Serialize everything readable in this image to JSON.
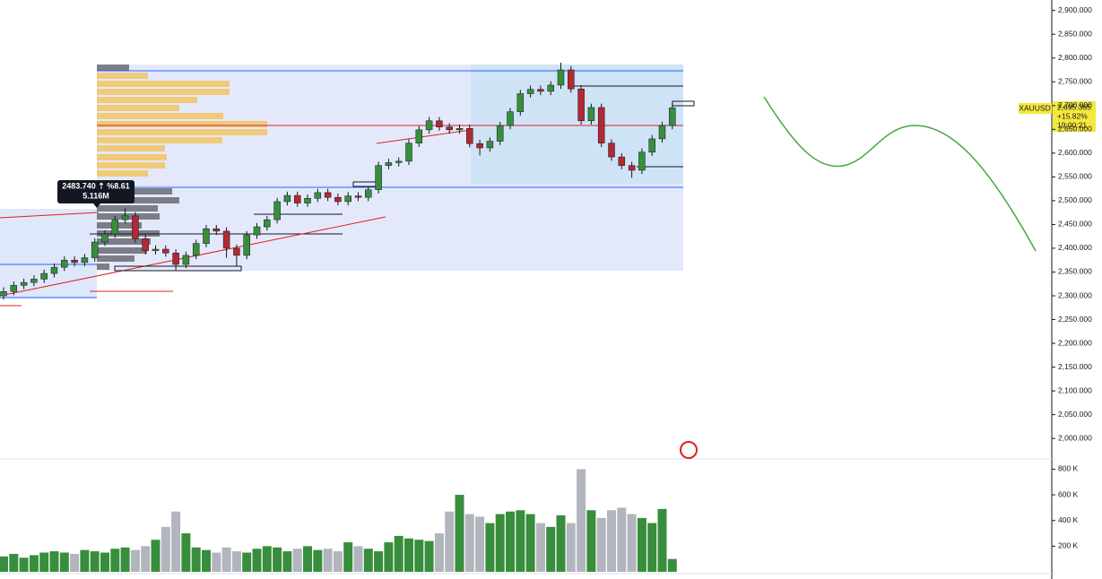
{
  "chart_data": [
    {
      "type": "candlestick",
      "series": [
        {
          "name": "XAUUSD",
          "up_color": "#388e3c",
          "down_color": "#b22833",
          "open": [
            2300,
            2309,
            2322,
            2328,
            2335,
            2347,
            2360,
            2375,
            2370,
            2380,
            2413,
            2430,
            2460,
            2468,
            2420,
            2395,
            2398,
            2390,
            2366,
            2385,
            2410,
            2441,
            2436,
            2400,
            2385,
            2428,
            2445,
            2460,
            2498,
            2511,
            2495,
            2505,
            2517,
            2507,
            2498,
            2510,
            2507,
            2523,
            2574,
            2580,
            2583,
            2621,
            2649,
            2668,
            2655,
            2649,
            2652,
            2620,
            2611,
            2625,
            2658,
            2687,
            2725,
            2734,
            2730,
            2743,
            2775,
            2735,
            2668,
            2696,
            2621,
            2592,
            2574,
            2564,
            2602,
            2630,
            2658
          ],
          "high": [
            2318,
            2330,
            2336,
            2343,
            2355,
            2368,
            2383,
            2383,
            2388,
            2421,
            2438,
            2468,
            2483.74,
            2476,
            2428,
            2406,
            2406,
            2398,
            2393,
            2418,
            2449,
            2449,
            2444,
            2408,
            2436,
            2453,
            2468,
            2506,
            2519,
            2519,
            2513,
            2525,
            2525,
            2515,
            2518,
            2518,
            2531,
            2582,
            2588,
            2591,
            2629,
            2657,
            2676,
            2676,
            2663,
            2660,
            2660,
            2628,
            2633,
            2666,
            2695,
            2733,
            2742,
            2742,
            2751,
            2790,
            2783,
            2743,
            2704,
            2704,
            2629,
            2600,
            2582,
            2610,
            2638,
            2666,
            2705
          ],
          "low": [
            2292,
            2301,
            2314,
            2320,
            2327,
            2339,
            2352,
            2362,
            2362,
            2372,
            2405,
            2422,
            2452,
            2412,
            2387,
            2387,
            2382,
            2354,
            2358,
            2377,
            2402,
            2428,
            2380,
            2362,
            2377,
            2420,
            2437,
            2452,
            2490,
            2487,
            2487,
            2497,
            2499,
            2490,
            2490,
            2499,
            2499,
            2515,
            2566,
            2572,
            2575,
            2613,
            2641,
            2647,
            2641,
            2641,
            2612,
            2595,
            2603,
            2617,
            2650,
            2679,
            2717,
            2722,
            2722,
            2735,
            2727,
            2660,
            2660,
            2613,
            2584,
            2566,
            2548,
            2556,
            2594,
            2622,
            2650
          ],
          "close": [
            2309,
            2322,
            2328,
            2335,
            2347,
            2360,
            2375,
            2370,
            2380,
            2413,
            2430,
            2460,
            2468,
            2420,
            2395,
            2398,
            2390,
            2366,
            2385,
            2410,
            2441,
            2436,
            2400,
            2385,
            2428,
            2445,
            2460,
            2498,
            2511,
            2495,
            2505,
            2517,
            2507,
            2498,
            2510,
            2507,
            2523,
            2574,
            2580,
            2583,
            2621,
            2649,
            2668,
            2655,
            2649,
            2652,
            2620,
            2611,
            2625,
            2658,
            2687,
            2725,
            2734,
            2730,
            2743,
            2775,
            2735,
            2668,
            2696,
            2621,
            2592,
            2574,
            2564,
            2602,
            2630,
            2658,
            2695.365
          ]
        }
      ],
      "ylim": [
        1957,
        2922
      ],
      "yticks": [
        {
          "value": 2000,
          "label": "2,000.000"
        },
        {
          "value": 2050,
          "label": "2,050.000"
        },
        {
          "value": 2100,
          "label": "2,100.000"
        },
        {
          "value": 2150,
          "label": "2,150.000"
        },
        {
          "value": 2200,
          "label": "2,200.000"
        },
        {
          "value": 2250,
          "label": "2,250.000"
        },
        {
          "value": 2300,
          "label": "2,300.000"
        },
        {
          "value": 2350,
          "label": "2,350.000"
        },
        {
          "value": 2400,
          "label": "2,400.000"
        },
        {
          "value": 2450,
          "label": "2,450.000"
        },
        {
          "value": 2500,
          "label": "2,500.000"
        },
        {
          "value": 2550,
          "label": "2,550.000"
        },
        {
          "value": 2600,
          "label": "2,600.000"
        },
        {
          "value": 2650,
          "label": "2,650.000"
        },
        {
          "value": 2700,
          "label": "2,700.000"
        },
        {
          "value": 2750,
          "label": "2,750.000"
        },
        {
          "value": 2800,
          "label": "2,800.000"
        },
        {
          "value": 2850,
          "label": "2,850.000"
        },
        {
          "value": 2900,
          "label": "2,900.000"
        }
      ],
      "price_label": {
        "symbol": "XAUUSD",
        "price": "2,695.365",
        "change": "+15.82%",
        "countdown": "19:00:21",
        "color": "#f5e83b"
      },
      "tooltip": {
        "text": "2483.740 ⇡ %8.61",
        "volume": "5.116M"
      }
    },
    {
      "type": "bar",
      "series": [
        {
          "name": "Volume",
          "up_color": "#388e3c",
          "down_color": "#b2b5be",
          "values": [
            120000,
            140000,
            110000,
            130000,
            150000,
            160000,
            150000,
            140000,
            170000,
            160000,
            150000,
            180000,
            190000,
            170000,
            200000,
            250000,
            350000,
            470000,
            300000,
            190000,
            170000,
            150000,
            190000,
            160000,
            150000,
            180000,
            200000,
            190000,
            160000,
            180000,
            200000,
            170000,
            180000,
            160000,
            230000,
            200000,
            180000,
            160000,
            230000,
            280000,
            260000,
            250000,
            240000,
            300000,
            470000,
            600000,
            450000,
            430000,
            380000,
            450000,
            470000,
            480000,
            450000,
            380000,
            350000,
            440000,
            380000,
            800000,
            480000,
            420000,
            480000,
            500000,
            450000,
            420000,
            380000,
            490000,
            100000
          ]
        }
      ],
      "ylim": [
        0,
        880000
      ],
      "yticks": [
        {
          "value": 200000,
          "label": "200 K"
        },
        {
          "value": 400000,
          "label": "400 K"
        },
        {
          "value": 600000,
          "label": "600 K"
        },
        {
          "value": 800000,
          "label": "800 K"
        }
      ]
    }
  ]
}
